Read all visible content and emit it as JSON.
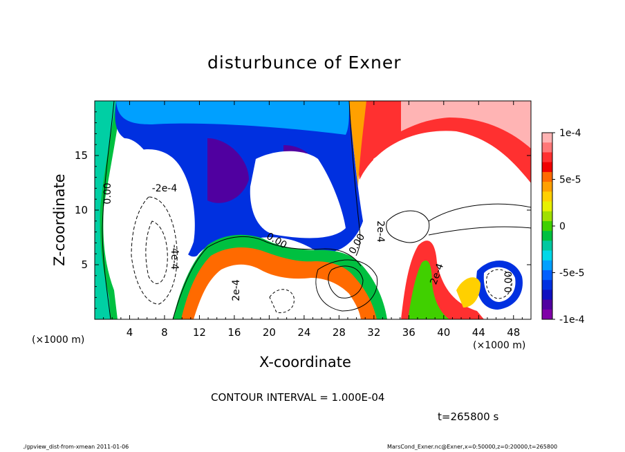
{
  "chart_data": {
    "type": "heatmap",
    "title": "disturbunce of Exner",
    "xlabel": "X-coordinate",
    "ylabel": "Z-coordinate",
    "x_unit_label": "(×1000 m)",
    "xlim": [
      0,
      50
    ],
    "ylim": [
      0,
      20
    ],
    "x_ticks": [
      4,
      8,
      12,
      16,
      20,
      24,
      28,
      32,
      36,
      40,
      44,
      48
    ],
    "y_ticks": [
      5,
      10,
      15
    ],
    "colorbar": {
      "range": [
        -0.0001,
        0.0001
      ],
      "tick_labels": [
        "1e-4",
        "5e-5",
        "0",
        "-5e-5",
        "-1e-4"
      ],
      "colors": [
        "#ffb4b4",
        "#ff7878",
        "#ff3030",
        "#f00000",
        "#ff6a00",
        "#ffa000",
        "#ffd000",
        "#e8f000",
        "#a0e000",
        "#40d000",
        "#00c040",
        "#00c8a0",
        "#00d8e8",
        "#00a0ff",
        "#0060ff",
        "#0030e0",
        "#1010c0",
        "#5000a0",
        "#8000a8"
      ]
    },
    "contour_labels": [
      "0.00",
      "-2e-4",
      "-4e-4",
      "2e-4",
      "0.00",
      "2e-4",
      "0.00",
      "2e-4",
      "0.00"
    ],
    "contour_interval_text": "CONTOUR INTERVAL = 1.000E-04",
    "time_text": "t=265800 s"
  },
  "footer": {
    "left": "./gpview_dist-from-xmean  2011-01-06",
    "right": "MarsCond_Exner.nc@Exner,x=0:50000,z=0:20000,t=265800"
  }
}
